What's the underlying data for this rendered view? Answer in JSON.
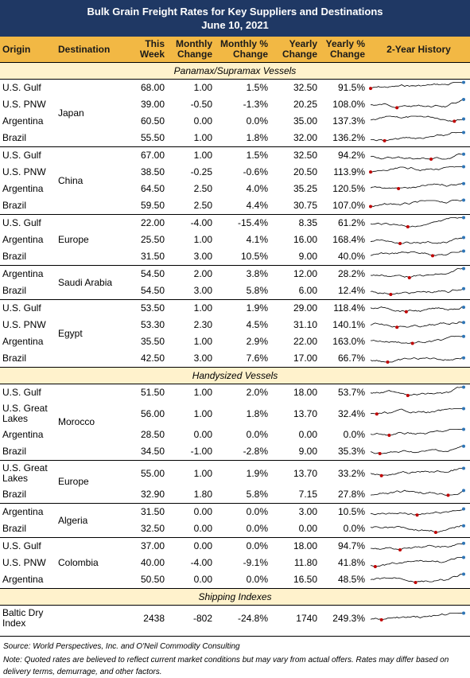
{
  "header": {
    "title": "Bulk Grain Freight Rates for Key Suppliers and Destinations",
    "date": "June 10, 2021"
  },
  "table": {
    "columns": [
      "Origin",
      "Destination",
      "This Week",
      "Monthly Change",
      "Monthly % Change",
      "Yearly Change",
      "Yearly % Change",
      "2-Year History"
    ],
    "sections": [
      {
        "title": "Panamax/Supramax Vessels",
        "groups": [
          {
            "destination": "Japan",
            "rows": [
              [
                "U.S. Gulf",
                "68.00",
                "1.00",
                "1.5%",
                "32.50",
                "91.5%"
              ],
              [
                "U.S. PNW",
                "39.00",
                "-0.50",
                "-1.3%",
                "20.25",
                "108.0%"
              ],
              [
                "Argentina",
                "60.50",
                "0.00",
                "0.0%",
                "35.00",
                "137.3%"
              ],
              [
                "Brazil",
                "55.50",
                "1.00",
                "1.8%",
                "32.00",
                "136.2%"
              ]
            ]
          },
          {
            "destination": "China",
            "rows": [
              [
                "U.S. Gulf",
                "67.00",
                "1.00",
                "1.5%",
                "32.50",
                "94.2%"
              ],
              [
                "U.S. PNW",
                "38.50",
                "-0.25",
                "-0.6%",
                "20.50",
                "113.9%"
              ],
              [
                "Argentina",
                "64.50",
                "2.50",
                "4.0%",
                "35.25",
                "120.5%"
              ],
              [
                "Brazil",
                "59.50",
                "2.50",
                "4.4%",
                "30.75",
                "107.0%"
              ]
            ]
          },
          {
            "destination": "Europe",
            "rows": [
              [
                "U.S. Gulf",
                "22.00",
                "-4.00",
                "-15.4%",
                "8.35",
                "61.2%"
              ],
              [
                "Argentina",
                "25.50",
                "1.00",
                "4.1%",
                "16.00",
                "168.4%"
              ],
              [
                "Brazil",
                "31.50",
                "3.00",
                "10.5%",
                "9.00",
                "40.0%"
              ]
            ]
          },
          {
            "destination": "Saudi Arabia",
            "rows": [
              [
                "Argentina",
                "54.50",
                "2.00",
                "3.8%",
                "12.00",
                "28.2%"
              ],
              [
                "Brazil",
                "54.50",
                "3.00",
                "5.8%",
                "6.00",
                "12.4%"
              ]
            ]
          },
          {
            "destination": "Egypt",
            "rows": [
              [
                "U.S. Gulf",
                "53.50",
                "1.00",
                "1.9%",
                "29.00",
                "118.4%"
              ],
              [
                "U.S. PNW",
                "53.30",
                "2.30",
                "4.5%",
                "31.10",
                "140.1%"
              ],
              [
                "Argentina",
                "35.50",
                "1.00",
                "2.9%",
                "22.00",
                "163.0%"
              ],
              [
                "Brazil",
                "42.50",
                "3.00",
                "7.6%",
                "17.00",
                "66.7%"
              ]
            ]
          }
        ]
      },
      {
        "title": "Handysized Vessels",
        "groups": [
          {
            "destination": "Morocco",
            "rows": [
              [
                "U.S. Gulf",
                "51.50",
                "1.00",
                "2.0%",
                "18.00",
                "53.7%"
              ],
              [
                "U.S. Great Lakes",
                "56.00",
                "1.00",
                "1.8%",
                "13.70",
                "32.4%"
              ],
              [
                "Argentina",
                "28.50",
                "0.00",
                "0.0%",
                "0.00",
                "0.0%"
              ],
              [
                "Brazil",
                "34.50",
                "-1.00",
                "-2.8%",
                "9.00",
                "35.3%"
              ]
            ]
          },
          {
            "destination": "Europe",
            "rows": [
              [
                "U.S. Great Lakes",
                "55.00",
                "1.00",
                "1.9%",
                "13.70",
                "33.2%"
              ],
              [
                "Brazil",
                "32.90",
                "1.80",
                "5.8%",
                "7.15",
                "27.8%"
              ]
            ]
          },
          {
            "destination": "Algeria",
            "rows": [
              [
                "Argentina",
                "31.50",
                "0.00",
                "0.0%",
                "3.00",
                "10.5%"
              ],
              [
                "Brazil",
                "32.50",
                "0.00",
                "0.0%",
                "0.00",
                "0.0%"
              ]
            ]
          },
          {
            "destination": "Colombia",
            "rows": [
              [
                "U.S. Gulf",
                "37.00",
                "0.00",
                "0.0%",
                "18.00",
                "94.7%"
              ],
              [
                "U.S. PNW",
                "40.00",
                "-4.00",
                "-9.1%",
                "11.80",
                "41.8%"
              ],
              [
                "Argentina",
                "50.50",
                "0.00",
                "0.0%",
                "16.50",
                "48.5%"
              ]
            ]
          }
        ]
      },
      {
        "title": "Shipping Indexes",
        "groups": [
          {
            "rows": [
              [
                "Baltic Dry Index",
                "2438",
                "-802",
                "-24.8%",
                "1740",
                "249.3%"
              ]
            ]
          }
        ]
      }
    ]
  },
  "footer": {
    "source": "Source: World Perspectives, Inc. and O'Neil Commodity Consulting",
    "note": "Note: Quoted rates are believed to reflect current market conditions but may vary from actual offers. Rates may differ based on delivery terms, demurrage, and other factors."
  }
}
